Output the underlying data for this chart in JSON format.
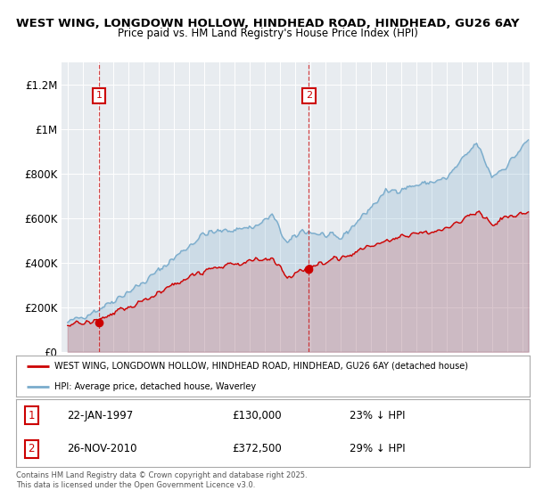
{
  "title_line1": "WEST WING, LONGDOWN HOLLOW, HINDHEAD ROAD, HINDHEAD, GU26 6AY",
  "title_line2": "Price paid vs. HM Land Registry's House Price Index (HPI)",
  "legend_label_red": "WEST WING, LONGDOWN HOLLOW, HINDHEAD ROAD, HINDHEAD, GU26 6AY (detached house)",
  "legend_label_blue": "HPI: Average price, detached house, Waverley",
  "annotation1_date": "22-JAN-1997",
  "annotation1_price": "£130,000",
  "annotation1_hpi": "23% ↓ HPI",
  "annotation2_date": "26-NOV-2010",
  "annotation2_price": "£372,500",
  "annotation2_hpi": "29% ↓ HPI",
  "footer": "Contains HM Land Registry data © Crown copyright and database right 2025.\nThis data is licensed under the Open Government Licence v3.0.",
  "background_color": "#ffffff",
  "plot_background_color": "#e8ecf0",
  "red_color": "#cc0000",
  "blue_color": "#7aaccc",
  "sale1_year": 1997.07,
  "sale1_price": 130000,
  "sale2_year": 2010.92,
  "sale2_price": 372500,
  "ylim": [
    0,
    1300000
  ],
  "yticks": [
    0,
    200000,
    400000,
    600000,
    800000,
    1000000,
    1200000
  ],
  "ytick_labels": [
    "£0",
    "£200K",
    "£400K",
    "£600K",
    "£800K",
    "£1M",
    "£1.2M"
  ]
}
